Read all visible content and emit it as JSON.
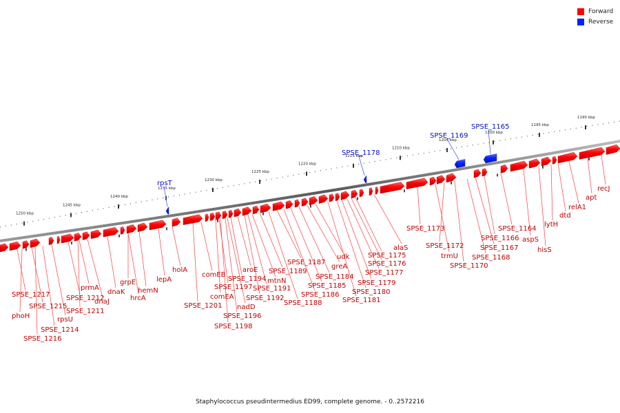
{
  "legend": [
    {
      "label": "Forward",
      "color": "#ff0000"
    },
    {
      "label": "Reverse",
      "color": "#0022ff"
    }
  ],
  "caption": "Staphylococcus pseudintermedius ED99, complete genome. - 0..2572216",
  "ticks": [
    "1250 kbp",
    "1245 kbp",
    "1240 kbp",
    "1235 kbp",
    "1230 kbp",
    "1225 kbp",
    "1220 kbp",
    "1215 kbp",
    "1210 kbp",
    "1205 kbp",
    "1200 kbp",
    "1195 kbp",
    "1190 kbp"
  ],
  "labels_reverse": [
    "rpsT",
    "SPSE_1178",
    "SPSE_1169",
    "SPSE_1165"
  ],
  "labels_forward": [
    "SPSE_1217",
    "phoH",
    "SPSE_1215",
    "SPSE_1216",
    "SPSE_1214",
    "rpsU",
    "SPSE_1212",
    "SPSE_1211",
    "prmA",
    "dnaJ",
    "dnaK",
    "grpE",
    "hrcA",
    "hemN",
    "lepA",
    "holA",
    "SPSE_1201",
    "comEB",
    "comEA",
    "SPSE_1197",
    "SPSE_1198",
    "SPSE_1196",
    "nadD",
    "SPSE_1194",
    "aroE",
    "SPSE_1192",
    "SPSE_1191",
    "mtnN",
    "SPSE_1189",
    "SPSE_1188",
    "SPSE_1187",
    "SPSE_1186",
    "SPSE_1185",
    "SPSE_1184",
    "greA",
    "udk",
    "SPSE_1181",
    "SPSE_1180",
    "SPSE_1179",
    "SPSE_1177",
    "SPSE_1176",
    "SPSE_1175",
    "alaS",
    "SPSE_1173",
    "trmU",
    "SPSE_1172",
    "SPSE_1170",
    "SPSE_1168",
    "SPSE_1167",
    "SPSE_1166",
    "SPSE_1164",
    "aspS",
    "hisS",
    "lytH",
    "dtd",
    "relA1",
    "apt",
    "recJ"
  ]
}
